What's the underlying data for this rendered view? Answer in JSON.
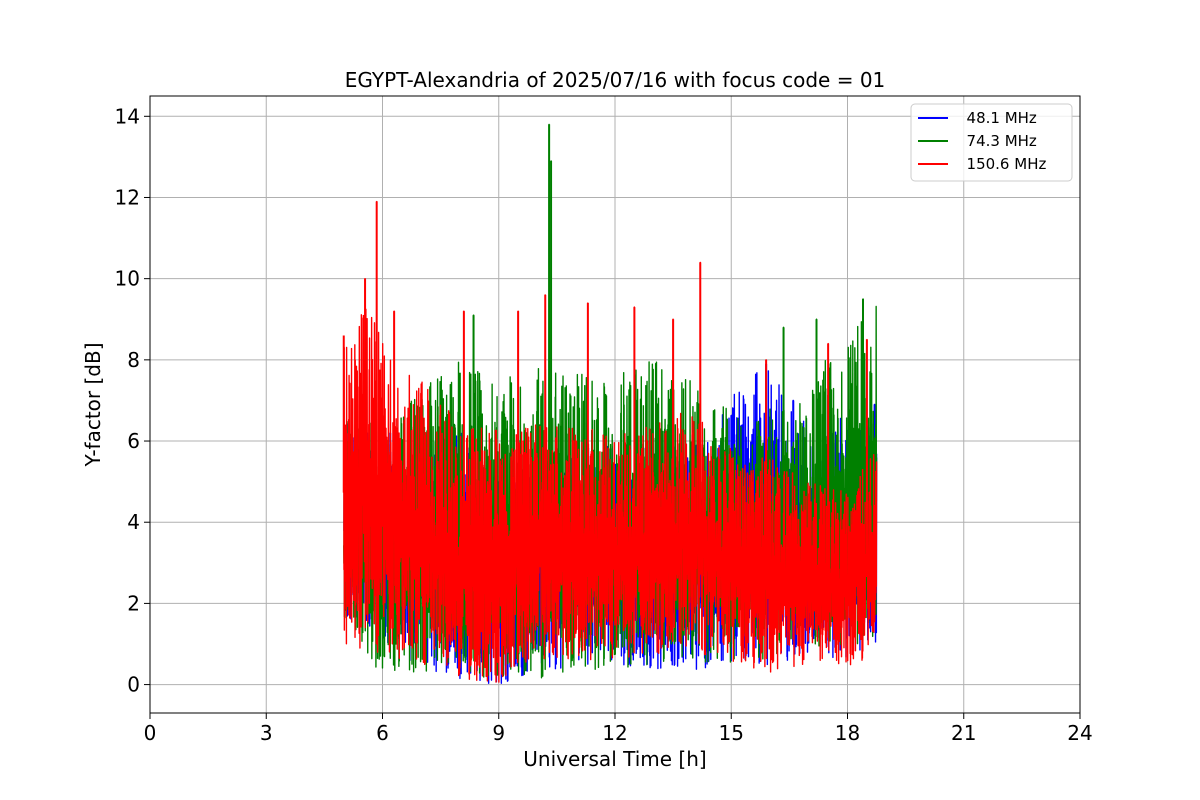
{
  "chart_data": {
    "type": "line",
    "title": "EGYPT-Alexandria of 2025/07/16 with focus code = 01",
    "xlabel": "Universal Time [h]",
    "ylabel": "Y-factor [dB]",
    "xlim": [
      0,
      24
    ],
    "ylim": [
      -0.7,
      14.5
    ],
    "xticks": [
      0,
      3,
      6,
      9,
      12,
      15,
      18,
      21,
      24
    ],
    "xtick_labels": [
      "0",
      "3",
      "6",
      "9",
      "12",
      "15",
      "18",
      "21",
      "24"
    ],
    "yticks": [
      0,
      2,
      4,
      6,
      8,
      10,
      12,
      14
    ],
    "ytick_labels": [
      "0",
      "2",
      "4",
      "6",
      "8",
      "10",
      "12",
      "14"
    ],
    "grid": true,
    "legend_position": "top-right",
    "series": [
      {
        "name": "48.1 MHz",
        "legend_label": "  48.1 MHz",
        "color": "#0000ff",
        "x_range": [
          5.0,
          18.75
        ],
        "envelope": [
          {
            "x": 5.0,
            "min": 1.6,
            "max": 6.5
          },
          {
            "x": 6.0,
            "min": 1.0,
            "max": 6.0
          },
          {
            "x": 7.0,
            "min": 0.4,
            "max": 5.8
          },
          {
            "x": 8.0,
            "min": 0.1,
            "max": 6.3
          },
          {
            "x": 9.0,
            "min": 0.0,
            "max": 5.5
          },
          {
            "x": 10.0,
            "min": 0.2,
            "max": 5.6
          },
          {
            "x": 11.0,
            "min": 0.5,
            "max": 5.8
          },
          {
            "x": 12.0,
            "min": 0.5,
            "max": 6.0
          },
          {
            "x": 13.0,
            "min": 0.4,
            "max": 5.8
          },
          {
            "x": 14.0,
            "min": 0.3,
            "max": 5.9
          },
          {
            "x": 15.0,
            "min": 0.5,
            "max": 7.3
          },
          {
            "x": 16.0,
            "min": 0.3,
            "max": 7.9
          },
          {
            "x": 17.0,
            "min": 0.8,
            "max": 6.4
          },
          {
            "x": 18.0,
            "min": 0.5,
            "max": 6.6
          },
          {
            "x": 18.75,
            "min": 1.0,
            "max": 6.9
          }
        ],
        "peaks": [
          {
            "x": 6.2,
            "y": 6.2
          },
          {
            "x": 8.3,
            "y": 6.0
          },
          {
            "x": 15.9,
            "y": 7.9
          },
          {
            "x": 16.6,
            "y": 7.0
          },
          {
            "x": 18.7,
            "y": 6.9
          }
        ]
      },
      {
        "name": "74.3 MHz",
        "legend_label": "  74.3 MHz",
        "color": "#008000",
        "x_range": [
          5.0,
          18.75
        ],
        "envelope": [
          {
            "x": 5.0,
            "min": 0.8,
            "max": 6.5
          },
          {
            "x": 6.0,
            "min": 0.3,
            "max": 6.5
          },
          {
            "x": 7.0,
            "min": 0.2,
            "max": 7.3
          },
          {
            "x": 8.0,
            "min": 0.1,
            "max": 8.1
          },
          {
            "x": 9.0,
            "min": 0.1,
            "max": 7.5
          },
          {
            "x": 10.0,
            "min": 0.0,
            "max": 7.8
          },
          {
            "x": 11.0,
            "min": 0.3,
            "max": 7.7
          },
          {
            "x": 12.0,
            "min": 0.4,
            "max": 7.6
          },
          {
            "x": 13.0,
            "min": 0.5,
            "max": 8.0
          },
          {
            "x": 14.0,
            "min": 0.5,
            "max": 7.8
          },
          {
            "x": 15.0,
            "min": 0.5,
            "max": 7.0
          },
          {
            "x": 16.0,
            "min": 0.6,
            "max": 6.8
          },
          {
            "x": 17.0,
            "min": 0.9,
            "max": 7.0
          },
          {
            "x": 17.5,
            "min": 0.9,
            "max": 8.5
          },
          {
            "x": 18.0,
            "min": 0.8,
            "max": 8.6
          },
          {
            "x": 18.75,
            "min": 1.0,
            "max": 9.4
          }
        ],
        "peaks": [
          {
            "x": 8.35,
            "y": 9.1
          },
          {
            "x": 10.3,
            "y": 13.8
          },
          {
            "x": 10.35,
            "y": 12.9
          },
          {
            "x": 16.35,
            "y": 8.8
          },
          {
            "x": 17.2,
            "y": 9.0
          },
          {
            "x": 18.4,
            "y": 9.5
          }
        ]
      },
      {
        "name": "150.6 MHz",
        "legend_label": "  150.6 MHz",
        "color": "#ff0000",
        "x_range": [
          5.0,
          18.75
        ],
        "envelope": [
          {
            "x": 5.0,
            "min": 0.8,
            "max": 8.6
          },
          {
            "x": 5.5,
            "min": 0.7,
            "max": 9.5
          },
          {
            "x": 6.0,
            "min": 0.8,
            "max": 8.5
          },
          {
            "x": 7.0,
            "min": 0.4,
            "max": 7.5
          },
          {
            "x": 8.0,
            "min": 0.1,
            "max": 6.5
          },
          {
            "x": 9.0,
            "min": 0.0,
            "max": 6.3
          },
          {
            "x": 10.0,
            "min": 0.6,
            "max": 6.5
          },
          {
            "x": 11.0,
            "min": 0.6,
            "max": 6.3
          },
          {
            "x": 12.0,
            "min": 0.6,
            "max": 6.3
          },
          {
            "x": 13.0,
            "min": 0.7,
            "max": 6.5
          },
          {
            "x": 14.0,
            "min": 0.8,
            "max": 6.8
          },
          {
            "x": 15.0,
            "min": 0.5,
            "max": 5.8
          },
          {
            "x": 16.0,
            "min": 0.2,
            "max": 5.6
          },
          {
            "x": 17.0,
            "min": 0.5,
            "max": 5.0
          },
          {
            "x": 18.0,
            "min": 0.4,
            "max": 4.8
          },
          {
            "x": 18.75,
            "min": 0.8,
            "max": 5.8
          }
        ],
        "peaks": [
          {
            "x": 5.0,
            "y": 8.6
          },
          {
            "x": 5.55,
            "y": 10.0
          },
          {
            "x": 5.85,
            "y": 11.9
          },
          {
            "x": 6.3,
            "y": 9.2
          },
          {
            "x": 8.1,
            "y": 9.2
          },
          {
            "x": 9.5,
            "y": 9.2
          },
          {
            "x": 10.2,
            "y": 9.6
          },
          {
            "x": 11.3,
            "y": 9.4
          },
          {
            "x": 12.5,
            "y": 9.3
          },
          {
            "x": 13.5,
            "y": 9.0
          },
          {
            "x": 14.2,
            "y": 10.4
          },
          {
            "x": 15.9,
            "y": 8.0
          },
          {
            "x": 17.5,
            "y": 8.4
          },
          {
            "x": 18.5,
            "y": 8.5
          }
        ]
      }
    ]
  }
}
